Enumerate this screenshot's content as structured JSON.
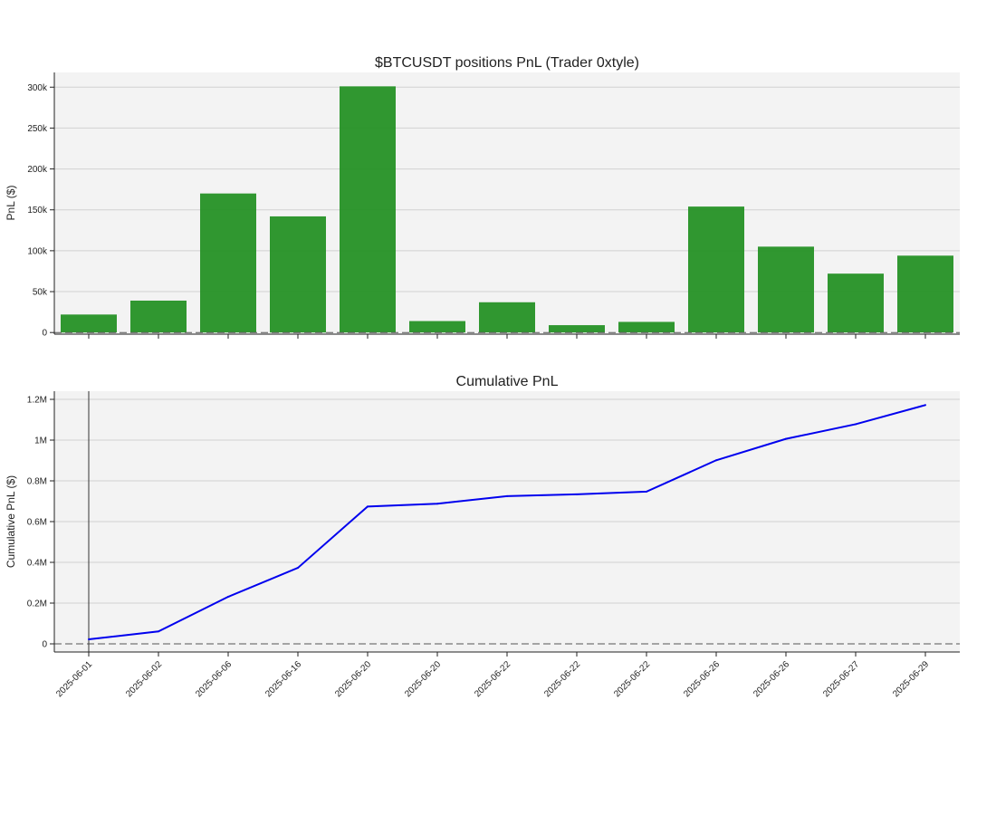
{
  "chart_data": [
    {
      "type": "bar",
      "title": "$BTCUSDT positions PnL (Trader 0xtyle)",
      "xlabel": "",
      "ylabel": "PnL ($)",
      "categories": [
        "2025-06-01",
        "2025-06-02",
        "2025-06-06",
        "2025-06-16",
        "2025-06-20",
        "2025-06-20",
        "2025-06-22",
        "2025-06-22",
        "2025-06-22",
        "2025-06-26",
        "2025-06-26",
        "2025-06-27",
        "2025-06-29"
      ],
      "values": [
        22000,
        39000,
        170000,
        142000,
        301000,
        14000,
        37000,
        9000,
        13000,
        154000,
        105000,
        72000,
        94000
      ],
      "ylim": [
        -2000,
        318000
      ],
      "yticks": [
        0,
        50000,
        100000,
        150000,
        200000,
        250000,
        300000
      ],
      "ytick_labels": [
        "0",
        "50k",
        "100k",
        "150k",
        "200k",
        "250k",
        "300k"
      ],
      "grid": true,
      "bar_color": "#1f8f1f",
      "background": "#f3f3f3"
    },
    {
      "type": "line",
      "title": "Cumulative PnL",
      "xlabel": "",
      "ylabel": "Cumulative PnL ($)",
      "x": [
        "2025-06-01",
        "2025-06-02",
        "2025-06-06",
        "2025-06-16",
        "2025-06-20",
        "2025-06-20",
        "2025-06-22",
        "2025-06-22",
        "2025-06-22",
        "2025-06-26",
        "2025-06-26",
        "2025-06-27",
        "2025-06-29"
      ],
      "values": [
        22000,
        61000,
        231000,
        373000,
        674000,
        688000,
        725000,
        734000,
        747000,
        901000,
        1006000,
        1078000,
        1172000
      ],
      "ylim": [
        -40000,
        1240000
      ],
      "yticks": [
        0,
        200000,
        400000,
        600000,
        800000,
        1000000,
        1200000
      ],
      "ytick_labels": [
        "0",
        "0.2M",
        "0.4M",
        "0.6M",
        "0.8M",
        "1M",
        "1.2M"
      ],
      "grid": true,
      "line_color": "#0000ee",
      "background": "#f3f3f3"
    }
  ]
}
